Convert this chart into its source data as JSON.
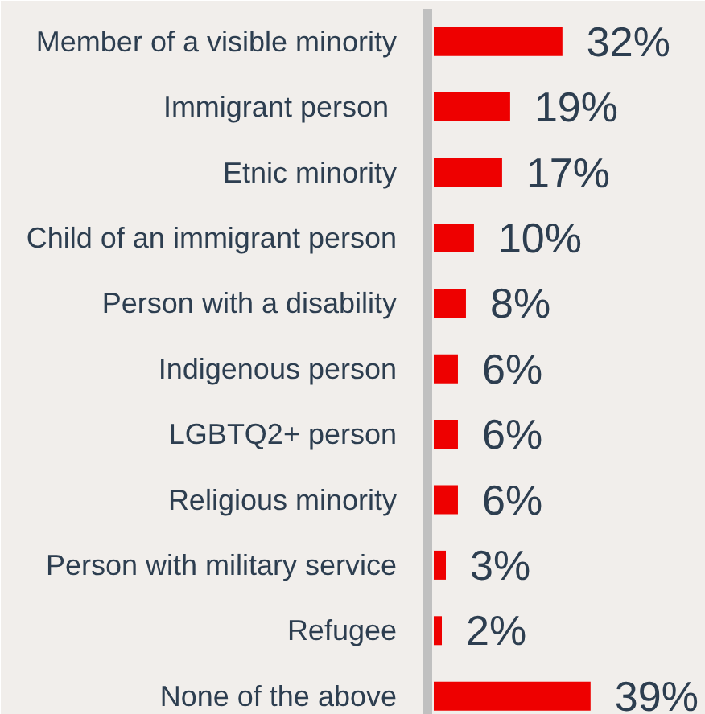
{
  "chart_data": {
    "type": "bar",
    "orientation": "horizontal",
    "categories": [
      "Member of a visible minority",
      "Immigrant person ",
      "Etnic minority",
      "Child of an immigrant person",
      "Person with a disability",
      "Indigenous person",
      "LGBTQ2+ person",
      "Religious minority",
      "Person with military service",
      "Refugee",
      "None of the above"
    ],
    "values": [
      32,
      19,
      17,
      10,
      8,
      6,
      6,
      6,
      3,
      2,
      39
    ],
    "color": "#ee0000",
    "value_labels": [
      "32%",
      "19%",
      "17%",
      "10%",
      "8%",
      "6%",
      "6%",
      "6%",
      "3%",
      "2%",
      "39%"
    ],
    "tick_labels": "y"
  }
}
